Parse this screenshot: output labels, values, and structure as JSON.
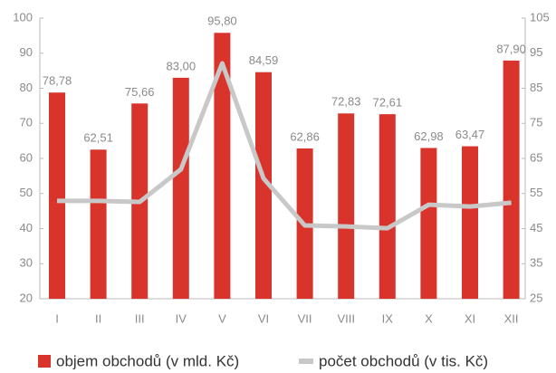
{
  "chart_data": {
    "type": "bar-line",
    "categories": [
      "I",
      "II",
      "III",
      "IV",
      "V",
      "VI",
      "VII",
      "VIII",
      "IX",
      "X",
      "XI",
      "XII"
    ],
    "series": [
      {
        "name": "objem obchodů (v mld. Kč)",
        "type": "bar",
        "color": "#d9342b",
        "axis": "y",
        "values": [
          78.78,
          62.51,
          75.66,
          83.0,
          95.8,
          84.59,
          62.86,
          72.83,
          72.61,
          62.98,
          63.47,
          87.9
        ],
        "value_labels": [
          "78,78",
          "62,51",
          "75,66",
          "83,00",
          "95,80",
          "84,59",
          "62,86",
          "72,83",
          "72,61",
          "62,98",
          "63,47",
          "87,90"
        ]
      },
      {
        "name": "počet obchodů (v tis. Kč)",
        "type": "line",
        "color": "#c8c8c8",
        "axis": "y2",
        "values": [
          52.9,
          52.9,
          52.6,
          61.9,
          92.1,
          59.3,
          45.9,
          45.6,
          45.1,
          51.8,
          51.3,
          52.4
        ]
      }
    ],
    "ylim": [
      20,
      100
    ],
    "yticks": [
      20,
      30,
      40,
      50,
      60,
      70,
      80,
      90,
      100
    ],
    "y2lim": [
      25,
      105
    ],
    "y2ticks": [
      25,
      35,
      45,
      55,
      65,
      75,
      85,
      95,
      105
    ]
  }
}
